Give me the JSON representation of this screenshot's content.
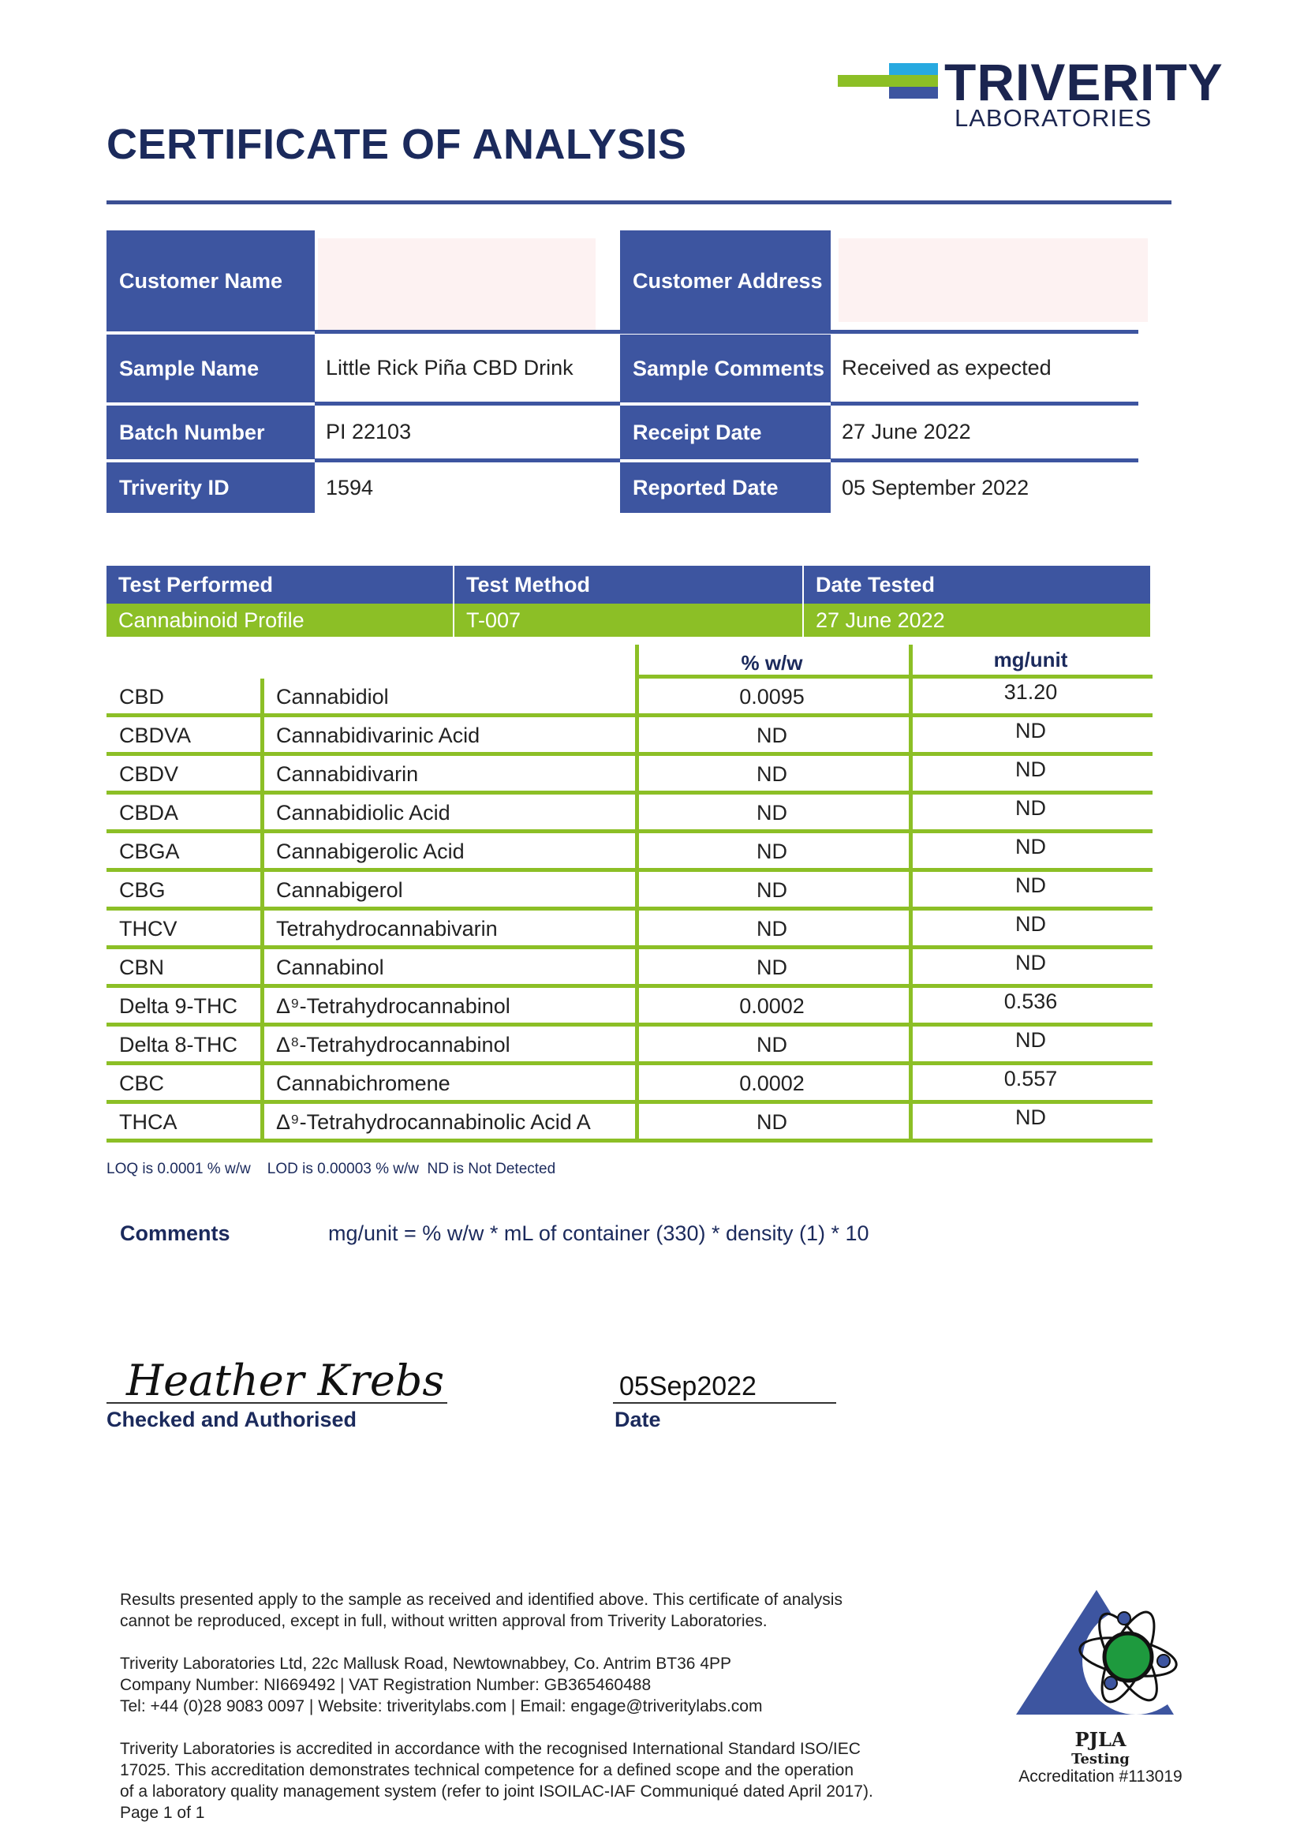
{
  "logo": {
    "name": "TRIVERITY",
    "sub": "LABORATORIES",
    "colors": [
      "#27a9e0",
      "#8cbf26",
      "#3d55a0"
    ]
  },
  "title": "CERTIFICATE OF ANALYSIS",
  "info": {
    "customer_name_label": "Customer Name",
    "customer_name": "",
    "customer_address_label": "Customer Address",
    "customer_address": "",
    "sample_name_label": "Sample Name",
    "sample_name": "Little Rick Piña CBD Drink",
    "sample_comments_label": "Sample Comments",
    "sample_comments": "Received as expected",
    "batch_label": "Batch Number",
    "batch": "PI 22103",
    "receipt_label": "Receipt Date",
    "receipt": "27 June 2022",
    "id_label": "Triverity ID",
    "id": "1594",
    "reported_label": "Reported Date",
    "reported": "05 September 2022"
  },
  "test": {
    "headers": [
      "Test Performed",
      "Test Method",
      "Date Tested"
    ],
    "values": [
      "Cannabinoid Profile",
      "T-007",
      "27 June 2022"
    ]
  },
  "results": {
    "headers": [
      "% w/w",
      "mg/unit"
    ],
    "rows": [
      [
        "CBD",
        "Cannabidiol",
        "0.0095",
        "31.20"
      ],
      [
        "CBDVA",
        "Cannabidivarinic Acid",
        "ND",
        "ND"
      ],
      [
        "CBDV",
        "Cannabidivarin",
        "ND",
        "ND"
      ],
      [
        "CBDA",
        "Cannabidiolic Acid",
        "ND",
        "ND"
      ],
      [
        "CBGA",
        "Cannabigerolic Acid",
        "ND",
        "ND"
      ],
      [
        "CBG",
        "Cannabigerol",
        "ND",
        "ND"
      ],
      [
        "THCV",
        "Tetrahydrocannabivarin",
        "ND",
        "ND"
      ],
      [
        "CBN",
        "Cannabinol",
        "ND",
        "ND"
      ],
      [
        "Delta 9-THC",
        "Δ⁹-Tetrahydrocannabinol",
        "0.0002",
        "0.536"
      ],
      [
        "Delta 8-THC",
        "Δ⁸-Tetrahydrocannabinol",
        "ND",
        "ND"
      ],
      [
        "CBC",
        "Cannabichromene",
        "0.0002",
        "0.557"
      ],
      [
        "THCA",
        "Δ⁹-Tetrahydrocannabinolic Acid A",
        "ND",
        "ND"
      ]
    ]
  },
  "limits": "LOQ is 0.0001 % w/w    LOD is 0.00003 % w/w  ND is Not Detected",
  "comments": {
    "label": "Comments",
    "text": "mg/unit = % w/w * mL of container (330) * density (1) * 10"
  },
  "signature": {
    "name": "Heather Krebs",
    "label": "Checked and Authorised",
    "date": "05Sep2022",
    "date_label": "Date"
  },
  "footer": {
    "p1": [
      "Results presented apply to the sample as received and identified above. This certificate of analysis",
      "cannot be reproduced, except in full, without written approval from Triverity Laboratories."
    ],
    "p2": [
      "Triverity Laboratories Ltd, 22c Mallusk Road, Newtownabbey, Co. Antrim BT36 4PP",
      "Company Number: NI669492 | VAT Registration Number: GB365460488",
      "Tel: +44 (0)28 9083 0097 | Website: triveritylabs.com | Email: engage@triveritylabs.com"
    ],
    "p3": [
      "Triverity Laboratories is accredited in accordance with the recognised International Standard ISO/IEC",
      "17025. This accreditation demonstrates technical competence for a defined scope and the operation",
      "of a laboratory quality management system (refer to joint ISOILAC-IAF Communiqué dated April 2017)."
    ],
    "page": "Page 1 of 1"
  },
  "pjla": {
    "name": "PJLA",
    "testing": "Testing",
    "accreditation": "Accreditation #113019"
  }
}
